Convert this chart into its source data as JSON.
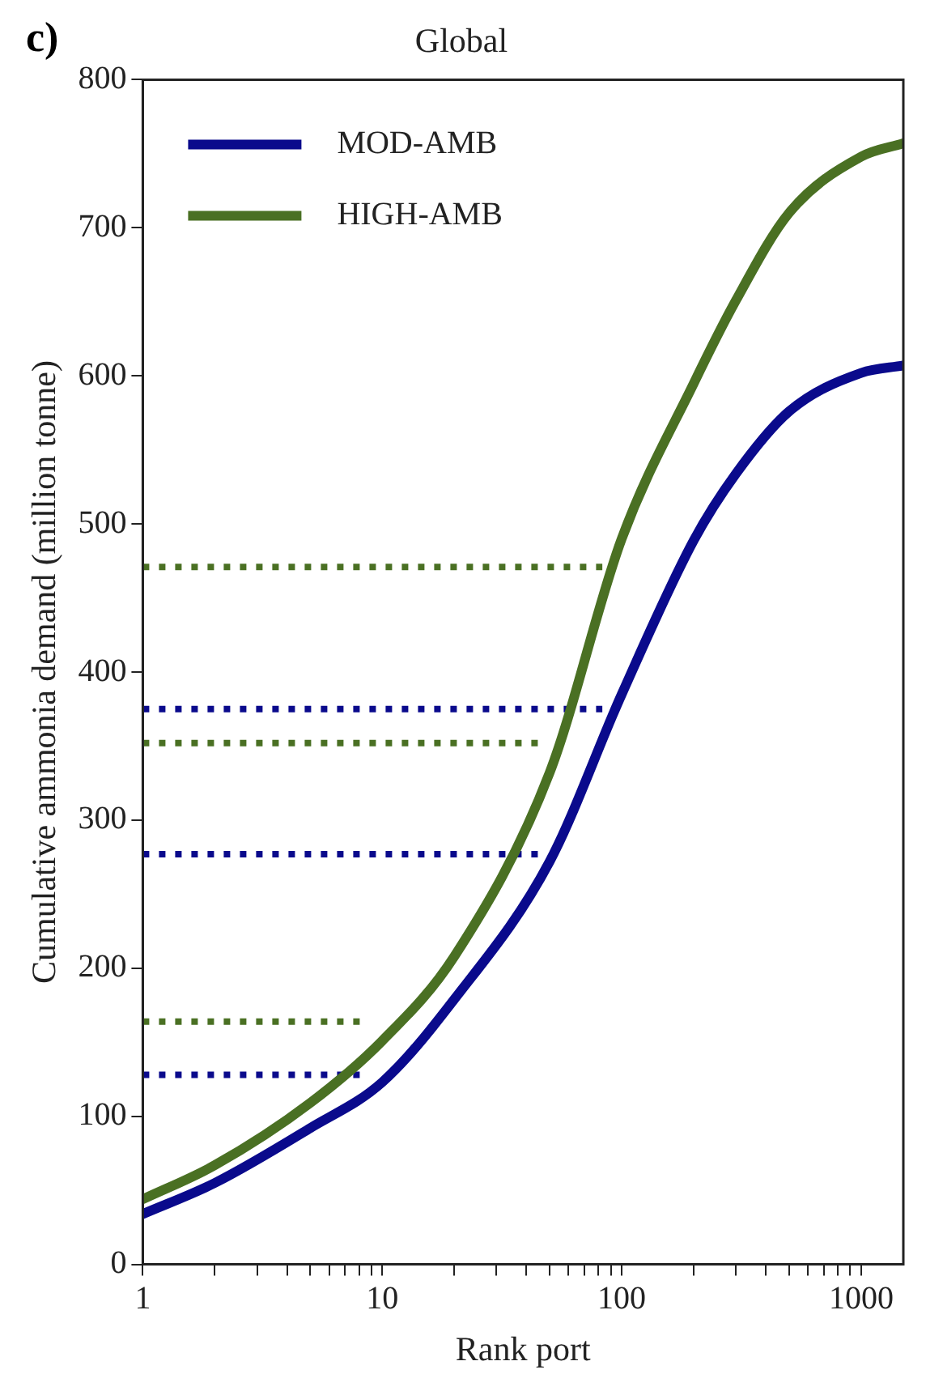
{
  "chart_data": {
    "type": "line",
    "title": "Global",
    "xlabel": "Rank port",
    "ylabel": "Cumulative ammonia demand (million tonne)",
    "annotations": [
      "c)"
    ],
    "log": "x",
    "xlim": [
      1,
      1500
    ],
    "xticks": [
      1,
      {
        "value": 2,
        "label": null
      },
      {
        "value": 3,
        "label": null
      },
      {
        "value": 4,
        "label": null
      },
      {
        "value": 5,
        "label": null
      },
      {
        "value": 6,
        "label": null
      },
      {
        "value": 7,
        "label": null
      },
      {
        "value": 8,
        "label": null
      },
      {
        "value": 9,
        "label": null
      },
      10,
      {
        "value": 20,
        "label": null
      },
      {
        "value": 30,
        "label": null
      },
      {
        "value": 40,
        "label": null
      },
      {
        "value": 50,
        "label": null
      },
      {
        "value": 60,
        "label": null
      },
      {
        "value": 70,
        "label": null
      },
      {
        "value": 80,
        "label": null
      },
      {
        "value": 90,
        "label": null
      },
      100,
      {
        "value": 200,
        "label": null
      },
      {
        "value": 300,
        "label": null
      },
      {
        "value": 400,
        "label": null
      },
      {
        "value": 500,
        "label": null
      },
      {
        "value": 600,
        "label": null
      },
      {
        "value": 700,
        "label": null
      },
      {
        "value": 800,
        "label": null
      },
      {
        "value": 900,
        "label": null
      },
      1000
    ],
    "ylim": [
      0,
      800
    ],
    "yticks": [
      0,
      100,
      200,
      300,
      400,
      500,
      600,
      700,
      800
    ],
    "grid": false,
    "legend": "top left",
    "marker": "none",
    "line_style": "solid",
    "series": [
      {
        "name": "MOD-AMB",
        "color": "#0a0a8c",
        "x": [
          1,
          2,
          5,
          10,
          20,
          50,
          100,
          200,
          300,
          500,
          1000,
          1500
        ],
        "values": [
          34,
          55,
          92,
          123,
          179,
          272,
          385,
          489,
          534,
          576,
          602,
          607
        ]
      },
      {
        "name": "HIGH-AMB",
        "color": "#4a7023",
        "x": [
          1,
          2,
          5,
          10,
          20,
          50,
          100,
          200,
          300,
          500,
          1000,
          1500
        ],
        "values": [
          44,
          67,
          109,
          151,
          208,
          332,
          490,
          595,
          651,
          710,
          748,
          757
        ]
      },
      {
        "color": "#4a7023",
        "line_style": "dotted",
        "x": [
          1,
          83
        ],
        "values": [
          471,
          471
        ]
      },
      {
        "color": "#0a0a8c",
        "line_style": "dotted",
        "x": [
          1,
          83
        ],
        "values": [
          375,
          375
        ]
      },
      {
        "color": "#4a7023",
        "line_style": "dotted",
        "x": [
          1,
          47
        ],
        "values": [
          352,
          352
        ]
      },
      {
        "color": "#0a0a8c",
        "line_style": "dotted",
        "x": [
          1,
          47
        ],
        "values": [
          277,
          277
        ]
      },
      {
        "color": "#4a7023",
        "line_style": "dotted",
        "x": [
          1,
          8.3
        ],
        "values": [
          164,
          164
        ]
      },
      {
        "color": "#0a0a8c",
        "line_style": "dotted",
        "x": [
          1,
          8.3
        ],
        "values": [
          128,
          128
        ]
      }
    ]
  }
}
